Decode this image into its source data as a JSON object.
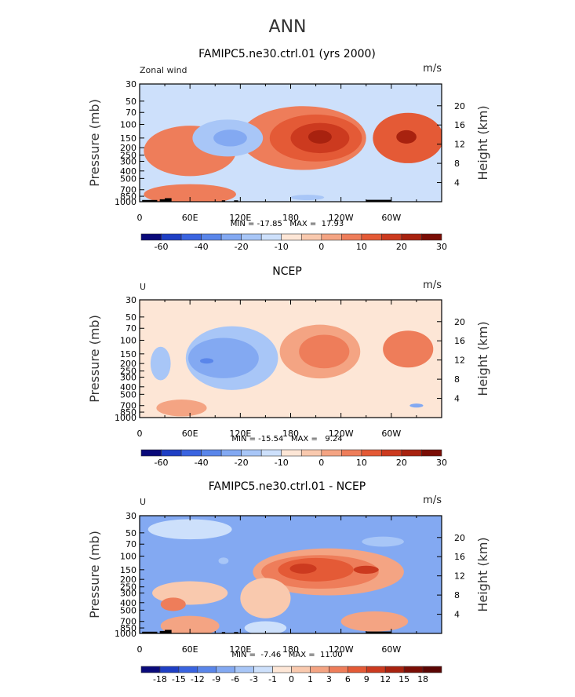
{
  "figure_title": "ANN",
  "chart_data": [
    {
      "type": "heatmap",
      "title": "FAMIPC5.ne30.ctrl.01 (yrs 2000)",
      "left_label": "Zonal wind",
      "units": "m/s",
      "ylabel": "Pressure (mb)",
      "ylabel_right": "Height (km)",
      "x_ticks": [
        "0",
        "60E",
        "120E",
        "180",
        "120W",
        "60W"
      ],
      "x_tick_values": [
        0,
        60,
        120,
        180,
        240,
        300
      ],
      "xlim": [
        0,
        360
      ],
      "y_ticks": [
        "30",
        "50",
        "70",
        "100",
        "150",
        "200",
        "250",
        "300",
        "400",
        "500",
        "700",
        "850",
        "1000"
      ],
      "y_tick_values": [
        30,
        50,
        70,
        100,
        150,
        200,
        250,
        300,
        400,
        500,
        700,
        850,
        1000
      ],
      "ylim": [
        30,
        1000
      ],
      "height_ticks": [
        "20",
        "16",
        "12",
        "8",
        "4"
      ],
      "height_tick_values": [
        20,
        16,
        12,
        8,
        4
      ],
      "stats": "MIN = -17.85   MAX =  17.93",
      "min": -17.85,
      "max": 17.93,
      "colorbar_labels": [
        "-60",
        "-40",
        "-20",
        "-10",
        "0",
        "10",
        "20",
        "30"
      ],
      "colorbar_label_positions": [
        1,
        3,
        5,
        7,
        9,
        11,
        13,
        15
      ],
      "colorbar_colors": [
        "#0a0a7a",
        "#1f3fc4",
        "#3a64e0",
        "#5a86ea",
        "#83a9f2",
        "#a8c6f7",
        "#cde0fb",
        "#fde6d6",
        "#f9c9ae",
        "#f4a483",
        "#ee7d5a",
        "#e45a36",
        "#cc3a1f",
        "#a8220f",
        "#7a0d05"
      ],
      "background_color": "#cde0fb",
      "blobs": [
        {
          "lon": 195,
          "p": 150,
          "rlon": 75,
          "rp": 0.95,
          "v": 3
        },
        {
          "lon": 210,
          "p": 150,
          "rlon": 55,
          "rp": 0.7,
          "v": 4
        },
        {
          "lon": 215,
          "p": 150,
          "rlon": 35,
          "rp": 0.45,
          "v": 5
        },
        {
          "lon": 215,
          "p": 145,
          "rlon": 14,
          "rp": 0.2,
          "v": 6
        },
        {
          "lon": 320,
          "p": 150,
          "rlon": 42,
          "rp": 0.75,
          "v": 4
        },
        {
          "lon": 318,
          "p": 145,
          "rlon": 12,
          "rp": 0.2,
          "v": 6
        },
        {
          "lon": 60,
          "p": 220,
          "rlon": 55,
          "rp": 0.75,
          "v": 3
        },
        {
          "lon": 60,
          "p": 800,
          "rlon": 55,
          "rp": 0.3,
          "v": 3
        },
        {
          "lon": 105,
          "p": 150,
          "rlon": 42,
          "rp": 0.55,
          "v": -1
        },
        {
          "lon": 108,
          "p": 150,
          "rlon": 20,
          "rp": 0.25,
          "v": -2
        },
        {
          "lon": 200,
          "p": 880,
          "rlon": 20,
          "rp": 0.08,
          "v": -1
        }
      ],
      "terrain": [
        {
          "lon": 12,
          "w": 18,
          "p": 950
        },
        {
          "lon": 27,
          "w": 6,
          "p": 930
        },
        {
          "lon": 34,
          "w": 8,
          "p": 900
        },
        {
          "lon": 100,
          "w": 4,
          "p": 960
        },
        {
          "lon": 115,
          "w": 5,
          "p": 960
        },
        {
          "lon": 285,
          "w": 30,
          "p": 945
        }
      ]
    },
    {
      "type": "heatmap",
      "title": "NCEP",
      "left_label": "U",
      "units": "m/s",
      "ylabel": "Pressure (mb)",
      "ylabel_right": "Height (km)",
      "x_ticks": [
        "0",
        "60E",
        "120E",
        "180",
        "120W",
        "60W"
      ],
      "x_tick_values": [
        0,
        60,
        120,
        180,
        240,
        300
      ],
      "xlim": [
        0,
        360
      ],
      "y_ticks": [
        "30",
        "50",
        "70",
        "100",
        "150",
        "200",
        "250",
        "300",
        "400",
        "500",
        "700",
        "850",
        "1000"
      ],
      "y_tick_values": [
        30,
        50,
        70,
        100,
        150,
        200,
        250,
        300,
        400,
        500,
        700,
        850,
        1000
      ],
      "ylim": [
        30,
        1000
      ],
      "height_ticks": [
        "20",
        "16",
        "12",
        "8",
        "4"
      ],
      "height_tick_values": [
        20,
        16,
        12,
        8,
        4
      ],
      "stats": "MIN = -15.54   MAX =   9.24",
      "min": -15.54,
      "max": 9.24,
      "colorbar_labels": [
        "-60",
        "-40",
        "-20",
        "-10",
        "0",
        "10",
        "20",
        "30"
      ],
      "colorbar_label_positions": [
        1,
        3,
        5,
        7,
        9,
        11,
        13,
        15
      ],
      "colorbar_colors": [
        "#0a0a7a",
        "#1f3fc4",
        "#3a64e0",
        "#5a86ea",
        "#83a9f2",
        "#a8c6f7",
        "#cde0fb",
        "#fde6d6",
        "#f9c9ae",
        "#f4a483",
        "#ee7d5a",
        "#e45a36",
        "#cc3a1f",
        "#a8220f",
        "#7a0d05"
      ],
      "background_color": "#fde6d6",
      "blobs": [
        {
          "lon": 215,
          "p": 140,
          "rlon": 48,
          "rp": 0.8,
          "v": 2
        },
        {
          "lon": 220,
          "p": 140,
          "rlon": 30,
          "rp": 0.5,
          "v": 3
        },
        {
          "lon": 320,
          "p": 130,
          "rlon": 30,
          "rp": 0.55,
          "v": 3
        },
        {
          "lon": 110,
          "p": 170,
          "rlon": 55,
          "rp": 0.95,
          "v": -1
        },
        {
          "lon": 100,
          "p": 170,
          "rlon": 42,
          "rp": 0.6,
          "v": -2
        },
        {
          "lon": 80,
          "p": 185,
          "rlon": 8,
          "rp": 0.08,
          "v": -3
        },
        {
          "lon": 25,
          "p": 200,
          "rlon": 12,
          "rp": 0.5,
          "v": -1
        },
        {
          "lon": 50,
          "p": 750,
          "rlon": 30,
          "rp": 0.25,
          "v": 2
        },
        {
          "lon": 330,
          "p": 700,
          "rlon": 8,
          "rp": 0.06,
          "v": -2
        }
      ],
      "terrain": []
    },
    {
      "type": "heatmap",
      "title": "FAMIPC5.ne30.ctrl.01 - NCEP",
      "left_label": "U",
      "units": "m/s",
      "ylabel": "Pressure (mb)",
      "ylabel_right": "Height (km)",
      "x_ticks": [
        "0",
        "60E",
        "120E",
        "180",
        "120W",
        "60W"
      ],
      "x_tick_values": [
        0,
        60,
        120,
        180,
        240,
        300
      ],
      "xlim": [
        0,
        360
      ],
      "y_ticks": [
        "30",
        "50",
        "70",
        "100",
        "150",
        "200",
        "250",
        "300",
        "400",
        "500",
        "700",
        "850",
        "1000"
      ],
      "y_tick_values": [
        30,
        50,
        70,
        100,
        150,
        200,
        250,
        300,
        400,
        500,
        700,
        850,
        1000
      ],
      "ylim": [
        30,
        1000
      ],
      "height_ticks": [
        "20",
        "16",
        "12",
        "8",
        "4"
      ],
      "height_tick_values": [
        20,
        16,
        12,
        8,
        4
      ],
      "stats": "MIN =  -7.46   MAX =  11.00",
      "min": -7.46,
      "max": 11.0,
      "colorbar_labels": [
        "-18",
        "-15",
        "-12",
        "-9",
        "-6",
        "-3",
        "-1",
        "0",
        "1",
        "3",
        "6",
        "9",
        "12",
        "15",
        "18"
      ],
      "colorbar_label_positions": [
        1,
        2,
        3,
        4,
        5,
        6,
        7,
        8,
        9,
        10,
        11,
        12,
        13,
        14,
        15
      ],
      "colorbar_colors": [
        "#0a0a7a",
        "#1f3fc4",
        "#3a64e0",
        "#5a86ea",
        "#83a9f2",
        "#a8c6f7",
        "#cde0fb",
        "#fde6d6",
        "#f9c9ae",
        "#f4a483",
        "#ee7d5a",
        "#e45a36",
        "#cc3a1f",
        "#a8220f",
        "#7a0d05",
        "#5a0503"
      ],
      "background_color": "#83a9f2",
      "blobs": [
        {
          "lon": 225,
          "p": 160,
          "rlon": 90,
          "rp": 0.7,
          "v": 1
        },
        {
          "lon": 215,
          "p": 160,
          "rlon": 70,
          "rp": 0.5,
          "v": 2
        },
        {
          "lon": 210,
          "p": 150,
          "rlon": 45,
          "rp": 0.35,
          "v": 3
        },
        {
          "lon": 195,
          "p": 145,
          "rlon": 16,
          "rp": 0.15,
          "v": 4
        },
        {
          "lon": 270,
          "p": 150,
          "rlon": 15,
          "rp": 0.12,
          "v": 4
        },
        {
          "lon": 150,
          "p": 350,
          "rlon": 30,
          "rp": 0.6,
          "v": 0
        },
        {
          "lon": 60,
          "p": 300,
          "rlon": 45,
          "rp": 0.35,
          "v": 0
        },
        {
          "lon": 40,
          "p": 420,
          "rlon": 15,
          "rp": 0.2,
          "v": 2
        },
        {
          "lon": 60,
          "p": 800,
          "rlon": 35,
          "rp": 0.3,
          "v": 1
        },
        {
          "lon": 280,
          "p": 700,
          "rlon": 40,
          "rp": 0.3,
          "v": 1
        },
        {
          "lon": 290,
          "p": 65,
          "rlon": 25,
          "rp": 0.15,
          "v": -2
        },
        {
          "lon": 60,
          "p": 45,
          "rlon": 50,
          "rp": 0.3,
          "v": -1
        },
        {
          "lon": 100,
          "p": 115,
          "rlon": 6,
          "rp": 0.1,
          "v": -2
        },
        {
          "lon": 150,
          "p": 850,
          "rlon": 25,
          "rp": 0.2,
          "v": -1
        }
      ],
      "terrain": [
        {
          "lon": 12,
          "w": 18,
          "p": 950
        },
        {
          "lon": 27,
          "w": 6,
          "p": 930
        },
        {
          "lon": 34,
          "w": 8,
          "p": 900
        },
        {
          "lon": 100,
          "w": 4,
          "p": 960
        },
        {
          "lon": 115,
          "w": 5,
          "p": 960
        },
        {
          "lon": 285,
          "w": 30,
          "p": 945
        }
      ]
    }
  ]
}
